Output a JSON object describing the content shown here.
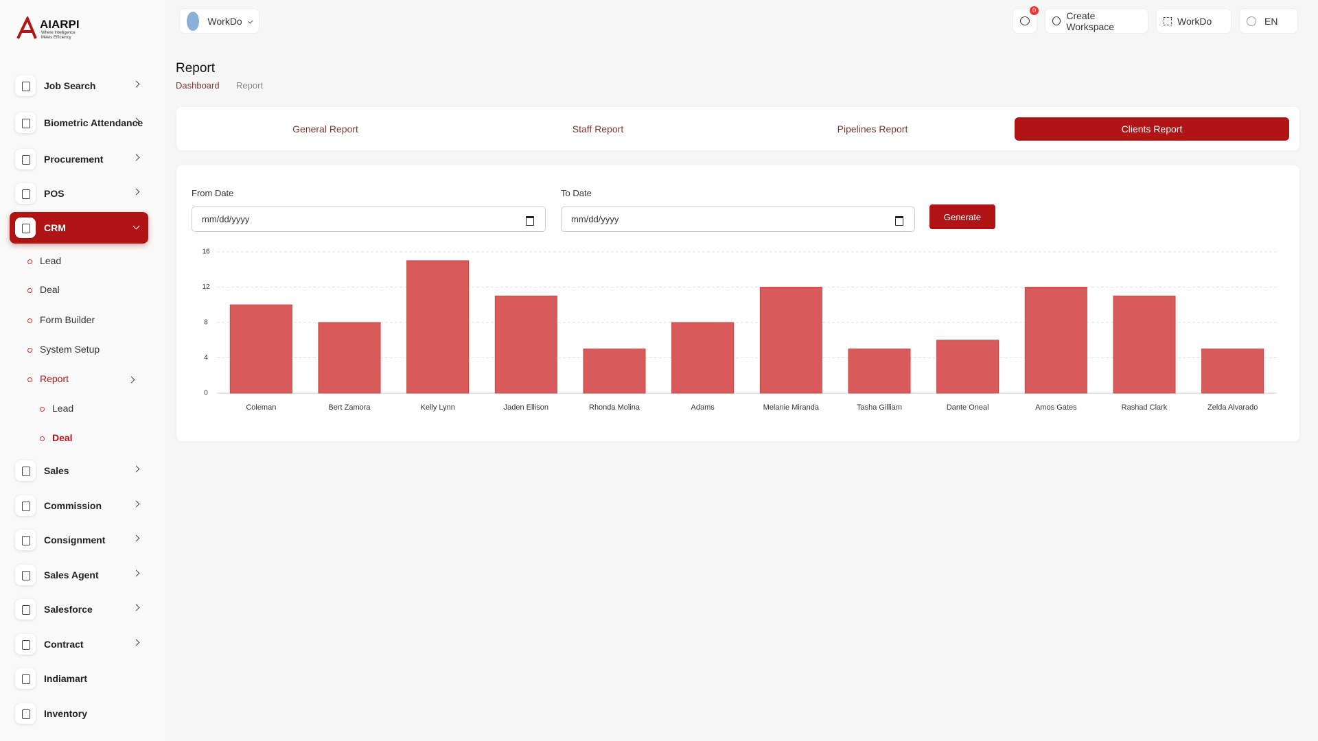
{
  "sidebar": {
    "logo": "AIARPI",
    "tagline": "Where Intelligence Meets Efficiency",
    "items": [
      "Job Search",
      "Biometric Attendance",
      "Procurement",
      "POS",
      "CRM"
    ],
    "crm_items": [
      "Lead",
      "Deal",
      "Form Builder",
      "System Setup",
      "Report"
    ],
    "report_items": [
      "Lead",
      "Deal"
    ],
    "more_items": [
      "Sales",
      "Commission",
      "Consignment",
      "Sales Agent",
      "Salesforce",
      "Contract",
      "Indiamart",
      "Inventory"
    ]
  },
  "header": {
    "workspace": "WorkDo",
    "notifications": "0",
    "create_workspace": "Create Workspace",
    "workspace_menu": "WorkDo",
    "language": "EN"
  },
  "page": {
    "title": "Report",
    "breadcrumb": [
      "Dashboard",
      "Report"
    ]
  },
  "tabs": [
    "General Report",
    "Staff Report",
    "Pipelines Report",
    "Clients Report"
  ],
  "form": {
    "from_label": "From Date",
    "from_placeholder": "mm/dd/yyyy",
    "to_label": "To Date",
    "to_placeholder": "mm/dd/yyyy",
    "button": "Generate"
  },
  "chart_data": {
    "type": "bar",
    "categories": [
      "Coleman",
      "Bert Zamora",
      "Kelly Lynn",
      "Jaden Ellison",
      "Rhonda Molina",
      "Adams",
      "Melanie Miranda",
      "Tasha Gilliam",
      "Dante Oneal",
      "Amos Gates",
      "Rashad Clark",
      "Zelda Alvarado"
    ],
    "values": [
      10,
      8,
      15,
      11,
      5,
      8,
      12,
      5,
      6,
      12,
      11,
      5
    ],
    "color": "#d95a5a",
    "ylim": [
      0,
      16
    ],
    "yticks": [
      0,
      4,
      8,
      12,
      16
    ],
    "grid": true
  }
}
